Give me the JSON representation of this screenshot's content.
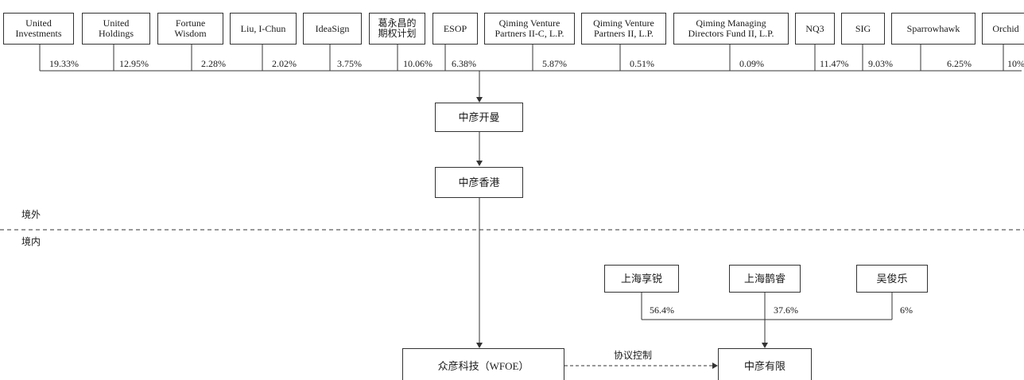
{
  "shareholders": [
    {
      "name": "United\nInvestments",
      "pct": "19.33%"
    },
    {
      "name": "United\nHoldings",
      "pct": "12.95%"
    },
    {
      "name": "Fortune\nWisdom",
      "pct": "2.28%"
    },
    {
      "name": "Liu, I-Chun",
      "pct": "2.02%"
    },
    {
      "name": "IdeaSign",
      "pct": "3.75%"
    },
    {
      "name": "葛永昌的\n期权计划",
      "pct": "10.06%"
    },
    {
      "name": "ESOP",
      "pct": "6.38%"
    },
    {
      "name": "Qiming Venture\nPartners II-C, L.P.",
      "pct": "5.87%"
    },
    {
      "name": "Qiming Venture\nPartners II, L.P.",
      "pct": "0.51%"
    },
    {
      "name": "Qiming Managing\nDirectors Fund II, L.P.",
      "pct": "0.09%"
    },
    {
      "name": "NQ3",
      "pct": "11.47%"
    },
    {
      "name": "SIG",
      "pct": "9.03%"
    },
    {
      "name": "Sparrowhawk",
      "pct": "6.25%"
    },
    {
      "name": "Orchid",
      "pct": "10%"
    }
  ],
  "entities": {
    "cayman": "中彦开曼",
    "hk": "中彦香港",
    "wfoe": "众彦科技（WFOE）",
    "domestic": "中彦有限"
  },
  "zones": {
    "offshore": "境外",
    "onshore": "境内"
  },
  "domestic_shareholders": [
    {
      "name": "上海享锐",
      "pct": "56.4%"
    },
    {
      "name": "上海鹊睿",
      "pct": "37.6%"
    },
    {
      "name": "吴俊乐",
      "pct": "6%"
    }
  ],
  "vie_label": "协议控制",
  "colors": {
    "line": "#333333",
    "text": "#1a1a1a",
    "background": "#ffffff"
  }
}
